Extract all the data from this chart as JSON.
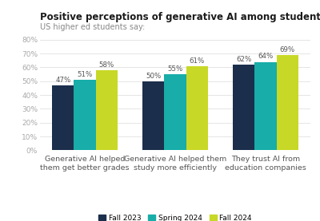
{
  "title": "Positive perceptions of generative AI among students continue to rise.",
  "subtitle": "US higher ed students say:",
  "categories": [
    "Generative AI helped\nthem get better grades",
    "Generative AI helped them\nstudy more efficiently",
    "They trust AI from\neducation companies"
  ],
  "series": [
    {
      "name": "Fall 2023",
      "color": "#1b2e4b",
      "values": [
        47,
        50,
        62
      ]
    },
    {
      "name": "Spring 2024",
      "color": "#18ada8",
      "values": [
        51,
        55,
        64
      ]
    },
    {
      "name": "Fall 2024",
      "color": "#c8d826",
      "values": [
        58,
        61,
        69
      ]
    }
  ],
  "ylim": [
    0,
    80
  ],
  "yticks": [
    0,
    10,
    20,
    30,
    40,
    50,
    60,
    70,
    80
  ],
  "ytick_labels": [
    "0%",
    "10%",
    "20%",
    "30%",
    "40%",
    "50%",
    "60%",
    "70%",
    "80%"
  ],
  "background_color": "#ffffff",
  "bar_width": 0.24,
  "title_fontsize": 8.5,
  "subtitle_fontsize": 7.0,
  "tick_fontsize": 6.5,
  "xlabel_fontsize": 6.8,
  "legend_fontsize": 6.5,
  "value_label_fontsize": 6.2,
  "title_color": "#1a1a1a",
  "subtitle_color": "#888888",
  "tick_color": "#aaaaaa",
  "xlabel_color": "#555555",
  "value_color": "#555555",
  "grid_color": "#e0e0e0"
}
